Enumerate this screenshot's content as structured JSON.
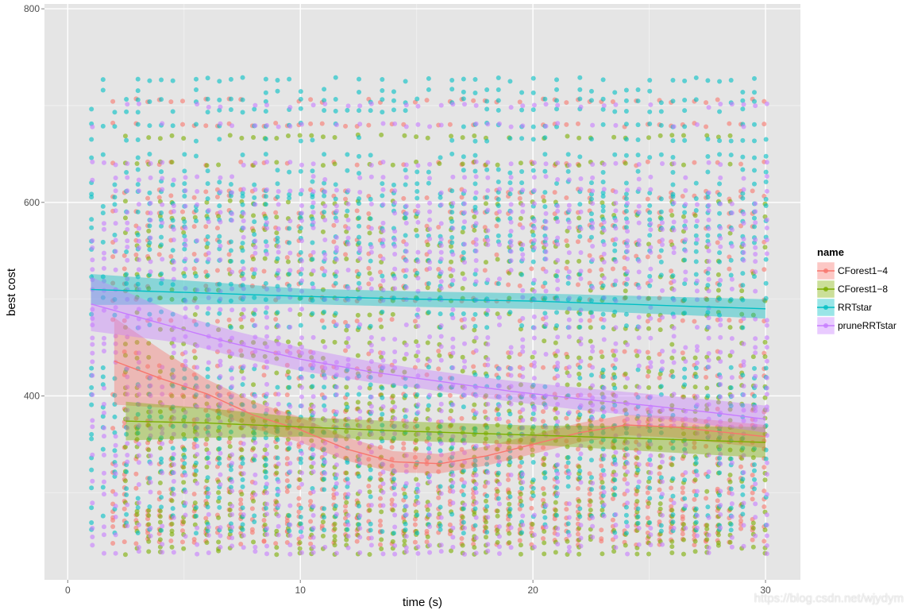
{
  "watermark": "https://blog.csdn.net/wjydym",
  "chart_data": {
    "type": "scatter",
    "xlabel": "time (s)",
    "ylabel": "best cost",
    "xlim": [
      -1,
      31.5
    ],
    "ylim": [
      210,
      805
    ],
    "x_ticks": [
      0,
      10,
      20,
      30
    ],
    "y_ticks": [
      400,
      600,
      800
    ],
    "grid": true,
    "legend": {
      "title": "name",
      "placement": "right",
      "entries": [
        "CForest1−4",
        "CForest1−8",
        "RRTstar",
        "pruneRRTstar"
      ]
    },
    "series": [
      {
        "name": "CForest1−4",
        "color": "#F8766D",
        "x_start": 2,
        "trend": [
          [
            2,
            436
          ],
          [
            4,
            418
          ],
          [
            6,
            402
          ],
          [
            8,
            380
          ],
          [
            10,
            365
          ],
          [
            12,
            345
          ],
          [
            14,
            332
          ],
          [
            16,
            330
          ],
          [
            18,
            338
          ],
          [
            20,
            350
          ],
          [
            22,
            362
          ],
          [
            24,
            370
          ],
          [
            26,
            368
          ],
          [
            28,
            363
          ],
          [
            30,
            358
          ]
        ],
        "band_halfwidth": [
          [
            2,
            45
          ],
          [
            6,
            15
          ],
          [
            12,
            12
          ],
          [
            16,
            10
          ],
          [
            22,
            10
          ],
          [
            30,
            12
          ]
        ],
        "levels": [
          705,
          680,
          640,
          612,
          605,
          590,
          575,
          560,
          545,
          530,
          515,
          500,
          478,
          445,
          430,
          420,
          400,
          385,
          375,
          368,
          352,
          346,
          335,
          328,
          320,
          313,
          305,
          300,
          293,
          287,
          282,
          276,
          272,
          266,
          262,
          258,
          252,
          248
        ]
      },
      {
        "name": "CForest1−8",
        "color": "#7CAE00",
        "x_start": 2.5,
        "trend": [
          [
            2.5,
            374
          ],
          [
            6,
            372
          ],
          [
            10,
            368
          ],
          [
            14,
            364
          ],
          [
            18,
            361
          ],
          [
            22,
            358
          ],
          [
            26,
            355
          ],
          [
            30,
            352
          ]
        ],
        "band_halfwidth": [
          [
            2.5,
            20
          ],
          [
            10,
            10
          ],
          [
            20,
            10
          ],
          [
            30,
            16
          ]
        ],
        "levels": [
          668,
          640,
          600,
          585,
          570,
          555,
          540,
          525,
          510,
          500,
          485,
          470,
          455,
          440,
          424,
          410,
          400,
          392,
          385,
          376,
          368,
          362,
          355,
          346,
          337,
          328,
          320,
          312,
          300,
          290,
          282,
          276,
          268,
          262,
          256,
          250,
          244,
          238
        ]
      },
      {
        "name": "RRTstar",
        "color": "#00BFC4",
        "x_start": 1,
        "trend": [
          [
            1,
            510
          ],
          [
            5,
            507
          ],
          [
            10,
            503
          ],
          [
            15,
            500
          ],
          [
            20,
            498
          ],
          [
            25,
            494
          ],
          [
            30,
            490
          ]
        ],
        "band_halfwidth": [
          [
            1,
            16
          ],
          [
            10,
            8
          ],
          [
            20,
            8
          ],
          [
            30,
            10
          ]
        ],
        "levels": [
          727,
          715,
          705,
          695,
          680,
          665,
          648,
          632,
          620,
          610,
          605,
          597,
          590,
          582,
          575,
          565,
          558,
          550,
          540,
          525,
          515,
          500,
          485,
          472,
          428,
          420,
          410,
          400,
          390,
          380,
          368,
          362,
          355,
          345,
          335,
          330,
          322,
          315,
          305,
          296,
          285,
          276,
          268,
          260
        ]
      },
      {
        "name": "pruneRRTstar",
        "color": "#C77CFF",
        "x_start": 1,
        "trend": [
          [
            1,
            495
          ],
          [
            4,
            475
          ],
          [
            7,
            455
          ],
          [
            10,
            438
          ],
          [
            13,
            425
          ],
          [
            16,
            415
          ],
          [
            19,
            405
          ],
          [
            22,
            397
          ],
          [
            25,
            390
          ],
          [
            28,
            382
          ],
          [
            30,
            376
          ]
        ],
        "band_halfwidth": [
          [
            1,
            28
          ],
          [
            5,
            14
          ],
          [
            15,
            10
          ],
          [
            25,
            12
          ],
          [
            30,
            14
          ]
        ],
        "levels": [
          700,
          680,
          640,
          625,
          612,
          598,
          590,
          580,
          572,
          562,
          555,
          548,
          540,
          530,
          520,
          510,
          500,
          490,
          480,
          472,
          460,
          452,
          445,
          436,
          430,
          420,
          410,
          400,
          390,
          384,
          375,
          368,
          360,
          350,
          340,
          330,
          320,
          310,
          300,
          288,
          276,
          265,
          255,
          245,
          238
        ]
      }
    ]
  }
}
